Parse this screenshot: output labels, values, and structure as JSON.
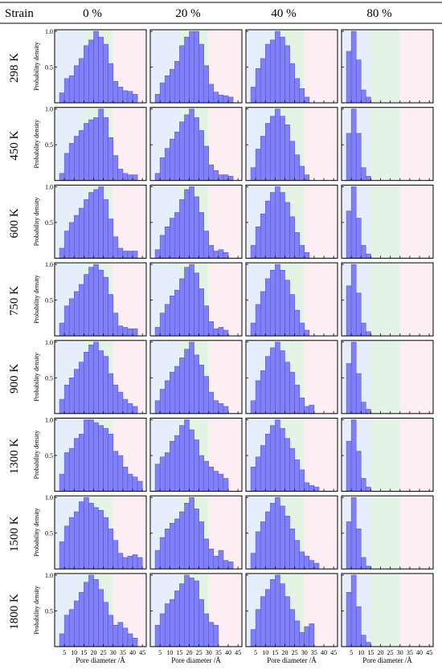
{
  "table": {
    "header_label": "Strain",
    "strains": [
      "0 %",
      "20 %",
      "40 %",
      "80 %"
    ],
    "temperatures": [
      "298 K",
      "450 K",
      "600 K",
      "750 K",
      "900 K",
      "1300 K",
      "1500 K",
      "1800 K"
    ]
  },
  "axis": {
    "xlabel": "Pore diameter /Å",
    "ylabel": "Probability density",
    "x_ticks": [
      "5",
      "10",
      "15",
      "20",
      "25",
      "30",
      "35",
      "40",
      "45"
    ],
    "x_tick_values": [
      5,
      10,
      15,
      20,
      25,
      30,
      35,
      40,
      45
    ],
    "y_ticks": [
      "0.5",
      "1.0"
    ],
    "y_tick_values": [
      0.5,
      1.0
    ]
  },
  "colors": {
    "bar": "#8080f8",
    "bar_edge": "#5050c0",
    "band_blue": "#e6eefb",
    "band_green": "#e4f3e4",
    "band_pink": "#fdeef3"
  },
  "chart_data": {
    "type": "bar",
    "chart_kind": "histogram grid",
    "bin_width": 2.5,
    "bin_start": 2.5,
    "xlim": [
      0,
      47
    ],
    "ylim": [
      0,
      1.0
    ],
    "bands": [
      {
        "from": 0,
        "to": 15,
        "color": "blue"
      },
      {
        "from": 15,
        "to": 30,
        "color": "green"
      },
      {
        "from": 30,
        "to": 47,
        "color": "pink"
      }
    ],
    "series": [
      {
        "temperature": "298 K",
        "strain": "0 %",
        "values": [
          0.14,
          0.34,
          0.38,
          0.52,
          0.62,
          0.8,
          0.88,
          1.0,
          0.92,
          0.82,
          0.55,
          0.3,
          0.22,
          0.17,
          0.16,
          0.12
        ]
      },
      {
        "temperature": "298 K",
        "strain": "20 %",
        "values": [
          0.12,
          0.28,
          0.38,
          0.47,
          0.58,
          0.8,
          0.92,
          1.0,
          1.0,
          0.82,
          0.52,
          0.26,
          0.15,
          0.11,
          0.1,
          0.08
        ]
      },
      {
        "temperature": "298 K",
        "strain": "40 %",
        "values": [
          0.22,
          0.48,
          0.62,
          0.82,
          0.88,
          1.0,
          0.92,
          0.8,
          0.55,
          0.34,
          0.2,
          0.08
        ]
      },
      {
        "temperature": "298 K",
        "strain": "80 %",
        "values": [
          0.72,
          1.0,
          0.6,
          0.18,
          0.08
        ]
      },
      {
        "temperature": "450 K",
        "strain": "0 %",
        "values": [
          0.1,
          0.38,
          0.52,
          0.62,
          0.7,
          0.8,
          0.85,
          0.88,
          1.0,
          0.88,
          0.6,
          0.35,
          0.16,
          0.1,
          0.08,
          0.08
        ]
      },
      {
        "temperature": "450 K",
        "strain": "20 %",
        "values": [
          0.1,
          0.32,
          0.45,
          0.58,
          0.68,
          0.82,
          0.92,
          1.0,
          0.88,
          0.7,
          0.48,
          0.22,
          0.14,
          0.08,
          0.08,
          0.06
        ]
      },
      {
        "temperature": "450 K",
        "strain": "40 %",
        "values": [
          0.18,
          0.44,
          0.62,
          0.8,
          0.9,
          1.0,
          0.9,
          0.78,
          0.55,
          0.36,
          0.2,
          0.08
        ]
      },
      {
        "temperature": "450 K",
        "strain": "80 %",
        "values": [
          0.66,
          1.0,
          0.66,
          0.18,
          0.06
        ]
      },
      {
        "temperature": "600 K",
        "strain": "0 %",
        "values": [
          0.14,
          0.38,
          0.5,
          0.6,
          0.7,
          0.82,
          0.92,
          0.96,
          1.0,
          0.82,
          0.55,
          0.3,
          0.14,
          0.1,
          0.1,
          0.1
        ]
      },
      {
        "temperature": "600 K",
        "strain": "20 %",
        "values": [
          0.12,
          0.32,
          0.44,
          0.56,
          0.64,
          0.82,
          0.96,
          1.0,
          0.86,
          0.64,
          0.38,
          0.18,
          0.1,
          0.12,
          0.08
        ]
      },
      {
        "temperature": "600 K",
        "strain": "40 %",
        "values": [
          0.18,
          0.44,
          0.62,
          0.8,
          0.92,
          1.0,
          0.92,
          0.78,
          0.58,
          0.36,
          0.18,
          0.08
        ]
      },
      {
        "temperature": "600 K",
        "strain": "80 %",
        "values": [
          0.66,
          1.0,
          0.56,
          0.18,
          0.06
        ]
      },
      {
        "temperature": "750 K",
        "strain": "0 %",
        "values": [
          0.18,
          0.42,
          0.52,
          0.62,
          0.72,
          0.86,
          0.96,
          1.0,
          0.92,
          0.82,
          0.58,
          0.32,
          0.14,
          0.12,
          0.1,
          0.1
        ]
      },
      {
        "temperature": "750 K",
        "strain": "20 %",
        "values": [
          0.12,
          0.32,
          0.44,
          0.56,
          0.64,
          0.8,
          0.96,
          1.0,
          0.88,
          0.66,
          0.42,
          0.2,
          0.1,
          0.12,
          0.08
        ]
      },
      {
        "temperature": "750 K",
        "strain": "40 %",
        "values": [
          0.18,
          0.44,
          0.62,
          0.8,
          0.92,
          1.0,
          0.92,
          0.78,
          0.58,
          0.36,
          0.18,
          0.08
        ]
      },
      {
        "temperature": "750 K",
        "strain": "80 %",
        "values": [
          0.7,
          1.0,
          0.6,
          0.18,
          0.06
        ]
      },
      {
        "temperature": "900 K",
        "strain": "0 %",
        "values": [
          0.2,
          0.4,
          0.5,
          0.62,
          0.72,
          0.86,
          0.96,
          1.0,
          0.88,
          0.8,
          0.56,
          0.4,
          0.3,
          0.2,
          0.14,
          0.1
        ]
      },
      {
        "temperature": "900 K",
        "strain": "20 %",
        "values": [
          0.18,
          0.34,
          0.46,
          0.58,
          0.66,
          0.78,
          0.9,
          1.0,
          0.82,
          0.68,
          0.52,
          0.3,
          0.18,
          0.14,
          0.1
        ]
      },
      {
        "temperature": "900 K",
        "strain": "40 %",
        "values": [
          0.18,
          0.46,
          0.6,
          0.8,
          0.92,
          1.0,
          0.88,
          0.72,
          0.58,
          0.4,
          0.22,
          0.1,
          0.12
        ]
      },
      {
        "temperature": "900 K",
        "strain": "80 %",
        "values": [
          0.7,
          1.0,
          0.56,
          0.16,
          0.06
        ]
      },
      {
        "temperature": "1300 K",
        "strain": "0 %",
        "values": [
          0.24,
          0.54,
          0.6,
          0.74,
          0.8,
          1.0,
          1.0,
          0.96,
          0.92,
          0.88,
          0.8,
          0.56,
          0.5,
          0.34,
          0.24,
          0.2,
          0.14
        ]
      },
      {
        "temperature": "1300 K",
        "strain": "20 %",
        "values": [
          0.38,
          0.48,
          0.54,
          0.7,
          0.78,
          0.92,
          1.0,
          0.86,
          0.72,
          0.5,
          0.42,
          0.34,
          0.28,
          0.24,
          0.18
        ]
      },
      {
        "temperature": "1300 K",
        "strain": "40 %",
        "values": [
          0.34,
          0.48,
          0.64,
          0.8,
          0.92,
          1.0,
          0.88,
          0.74,
          0.6,
          0.44,
          0.3,
          0.12,
          0.08,
          0.06
        ]
      },
      {
        "temperature": "1300 K",
        "strain": "80 %",
        "values": [
          0.7,
          1.0,
          0.56,
          0.18,
          0.06
        ]
      },
      {
        "temperature": "1500 K",
        "strain": "0 %",
        "values": [
          0.38,
          0.6,
          0.72,
          0.8,
          0.94,
          1.0,
          0.92,
          0.86,
          0.82,
          0.72,
          0.56,
          0.4,
          0.22,
          0.16,
          0.18,
          0.2,
          0.16
        ]
      },
      {
        "temperature": "1500 K",
        "strain": "20 %",
        "values": [
          0.26,
          0.44,
          0.56,
          0.64,
          0.7,
          0.8,
          0.92,
          1.0,
          0.84,
          0.66,
          0.42,
          0.28,
          0.18,
          0.26,
          0.12,
          0.1
        ]
      },
      {
        "temperature": "1500 K",
        "strain": "40 %",
        "values": [
          0.22,
          0.52,
          0.66,
          0.8,
          0.92,
          1.0,
          0.88,
          0.74,
          0.56,
          0.4,
          0.24,
          0.18,
          0.12,
          0.08
        ]
      },
      {
        "temperature": "1500 K",
        "strain": "80 %",
        "values": [
          0.66,
          1.0,
          0.56,
          0.16,
          0.04
        ]
      },
      {
        "temperature": "1800 K",
        "strain": "0 %",
        "values": [
          0.18,
          0.44,
          0.52,
          0.64,
          0.76,
          0.9,
          1.0,
          0.94,
          0.8,
          0.62,
          0.44,
          0.3,
          0.34,
          0.26,
          0.18,
          0.12
        ]
      },
      {
        "temperature": "1800 K",
        "strain": "20 %",
        "values": [
          0.3,
          0.46,
          0.6,
          0.66,
          0.78,
          0.88,
          1.0,
          0.96,
          0.92,
          0.66,
          0.46,
          0.34,
          0.3
        ]
      },
      {
        "temperature": "1800 K",
        "strain": "40 %",
        "values": [
          0.24,
          0.52,
          0.7,
          0.8,
          0.94,
          1.0,
          0.88,
          0.7,
          0.52,
          0.36,
          0.2,
          0.28,
          0.32
        ]
      },
      {
        "temperature": "1800 K",
        "strain": "80 %",
        "values": [
          0.76,
          1.0,
          0.56,
          0.16,
          0.06
        ]
      }
    ]
  }
}
